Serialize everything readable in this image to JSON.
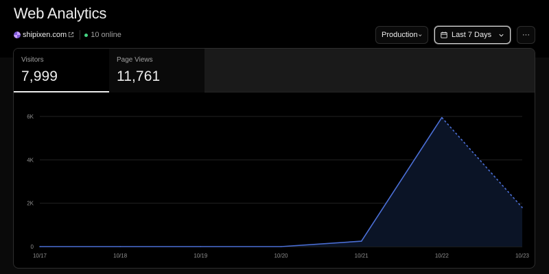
{
  "header": {
    "title": "Web Analytics",
    "site": "shipixen.com",
    "online": "10 online"
  },
  "toolbar": {
    "environment": "Production",
    "date_range": "Last 7 Days",
    "more_label": "···"
  },
  "metrics": [
    {
      "label": "Visitors",
      "value": "7,999"
    },
    {
      "label": "Page Views",
      "value": "11,761"
    }
  ],
  "colors": {
    "line": "#4b6fd6",
    "area": "#0b1426",
    "online": "#45d483"
  },
  "chart_data": {
    "type": "area",
    "series": [
      {
        "values": [
          0,
          0,
          0,
          0,
          250,
          5950,
          1800
        ]
      }
    ],
    "x": [
      "10/17",
      "10/18",
      "10/19",
      "10/20",
      "10/21",
      "10/22",
      "10/23"
    ],
    "yticks": [
      0,
      2000,
      4000,
      6000
    ],
    "ytick_labels": [
      "0",
      "2K",
      "4K",
      "6K"
    ],
    "ylim": [
      0,
      6000
    ],
    "projected_from_index": 5,
    "grid": true
  }
}
